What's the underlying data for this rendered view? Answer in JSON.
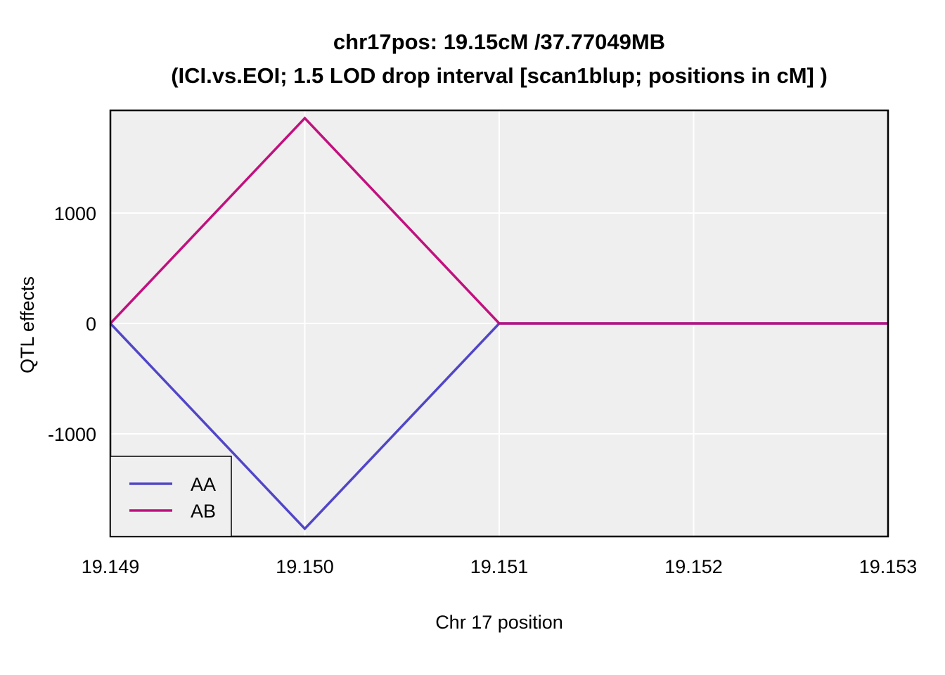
{
  "chart_data": {
    "type": "line",
    "title": "chr17pos: 19.15cM /37.77049MB",
    "subtitle": "(ICI.vs.EOI; 1.5 LOD drop interval [scan1blup; positions in cM] )",
    "xlabel": "Chr 17 position",
    "ylabel": "QTL effects",
    "xlim": [
      19.149,
      19.153
    ],
    "ylim": [
      -1930,
      1930
    ],
    "grid": true,
    "legend_position": "bottom-left",
    "x_ticks": [
      19.149,
      19.15,
      19.151,
      19.152,
      19.153
    ],
    "x_tick_labels": [
      "19.149",
      "19.150",
      "19.151",
      "19.152",
      "19.153"
    ],
    "y_ticks": [
      -1000,
      0,
      1000
    ],
    "y_tick_labels": [
      "-1000",
      "0",
      "1000"
    ],
    "x": [
      19.149,
      19.15,
      19.151,
      19.153
    ],
    "series": [
      {
        "name": "AA",
        "color": "#5146c6",
        "values": [
          0,
          -1860,
          0,
          0
        ]
      },
      {
        "name": "AB",
        "color": "#c0117e",
        "values": [
          0,
          1860,
          0,
          0
        ]
      }
    ],
    "background_color": "#efefef",
    "grid_color": "#ffffff"
  }
}
